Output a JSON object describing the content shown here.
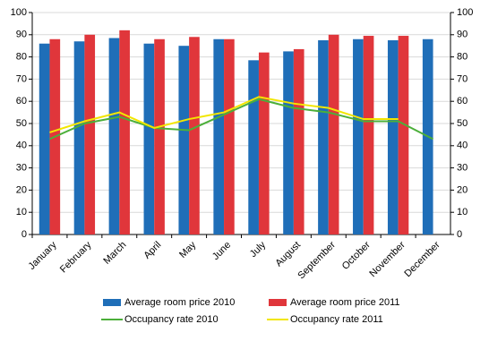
{
  "chart_data": {
    "type": "bar",
    "categories": [
      "January",
      "February",
      "March",
      "April",
      "May",
      "June",
      "July",
      "August",
      "September",
      "October",
      "November",
      "December"
    ],
    "series": [
      {
        "name": "Average room price 2010",
        "type": "bar",
        "color": "#1f6eb8",
        "values": [
          86,
          87,
          88.5,
          86,
          85,
          88,
          78.5,
          82.5,
          87.5,
          88,
          87.5,
          88
        ]
      },
      {
        "name": "Average room price 2011",
        "type": "bar",
        "color": "#e0363b",
        "values": [
          88,
          90,
          92,
          88,
          89,
          88,
          82,
          83.5,
          90,
          89.5,
          89.5,
          null
        ]
      },
      {
        "name": "Occupancy rate 2010",
        "type": "line",
        "color": "#4caf3a",
        "values": [
          43,
          50,
          53,
          48,
          47,
          54,
          61,
          57,
          55,
          51,
          51,
          43
        ]
      },
      {
        "name": "Occupancy rate 2011",
        "type": "line",
        "color": "#f2e600",
        "values": [
          46,
          51,
          55,
          48,
          52,
          55,
          62,
          59,
          57,
          52,
          52,
          null
        ]
      }
    ],
    "ylim": [
      0,
      100
    ],
    "yticks": [
      0,
      10,
      20,
      30,
      40,
      50,
      60,
      70,
      80,
      90,
      100
    ],
    "y2lim": [
      0,
      100
    ],
    "y2ticks": [
      0,
      10,
      20,
      30,
      40,
      50,
      60,
      70,
      80,
      90,
      100
    ],
    "grid": true,
    "legend": "bottom"
  }
}
